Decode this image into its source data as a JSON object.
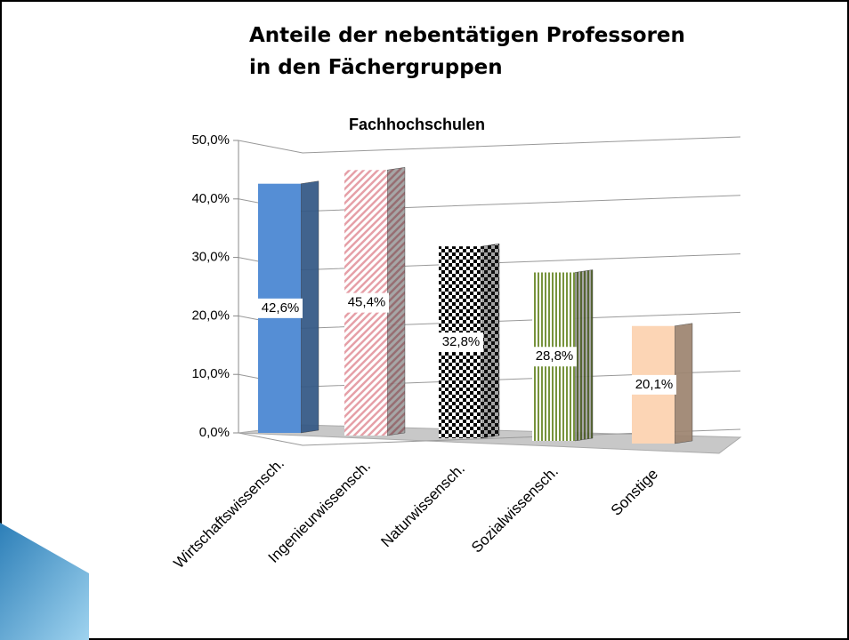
{
  "chart_data": {
    "type": "bar3d",
    "title": "Anteile der nebentätigen Professoren in den Fächergruppen",
    "subtitle": "Fachhochschulen",
    "categories": [
      "Wirtschaftswissensch.",
      "Ingenieurwissensch.",
      "Naturwissensch.",
      "Sozialwissensch.",
      "Sonstige"
    ],
    "values": [
      42.6,
      45.4,
      32.8,
      28.8,
      20.1
    ],
    "value_labels": [
      "42,6%",
      "45,4%",
      "32,8%",
      "28,8%",
      "20,1%"
    ],
    "colors": [
      "#558ed5",
      "#e6a0a8",
      "#000000",
      "#77933c",
      "#fcd5b5"
    ],
    "ylim": [
      0,
      50
    ],
    "yticks": [
      {
        "value": 0,
        "label": "0,0%"
      },
      {
        "value": 10,
        "label": "10,0%"
      },
      {
        "value": 20,
        "label": "20,0%"
      },
      {
        "value": 30,
        "label": "30,0%"
      },
      {
        "value": 40,
        "label": "40,0%"
      },
      {
        "value": 50,
        "label": "50,0%"
      }
    ],
    "grid": true
  }
}
